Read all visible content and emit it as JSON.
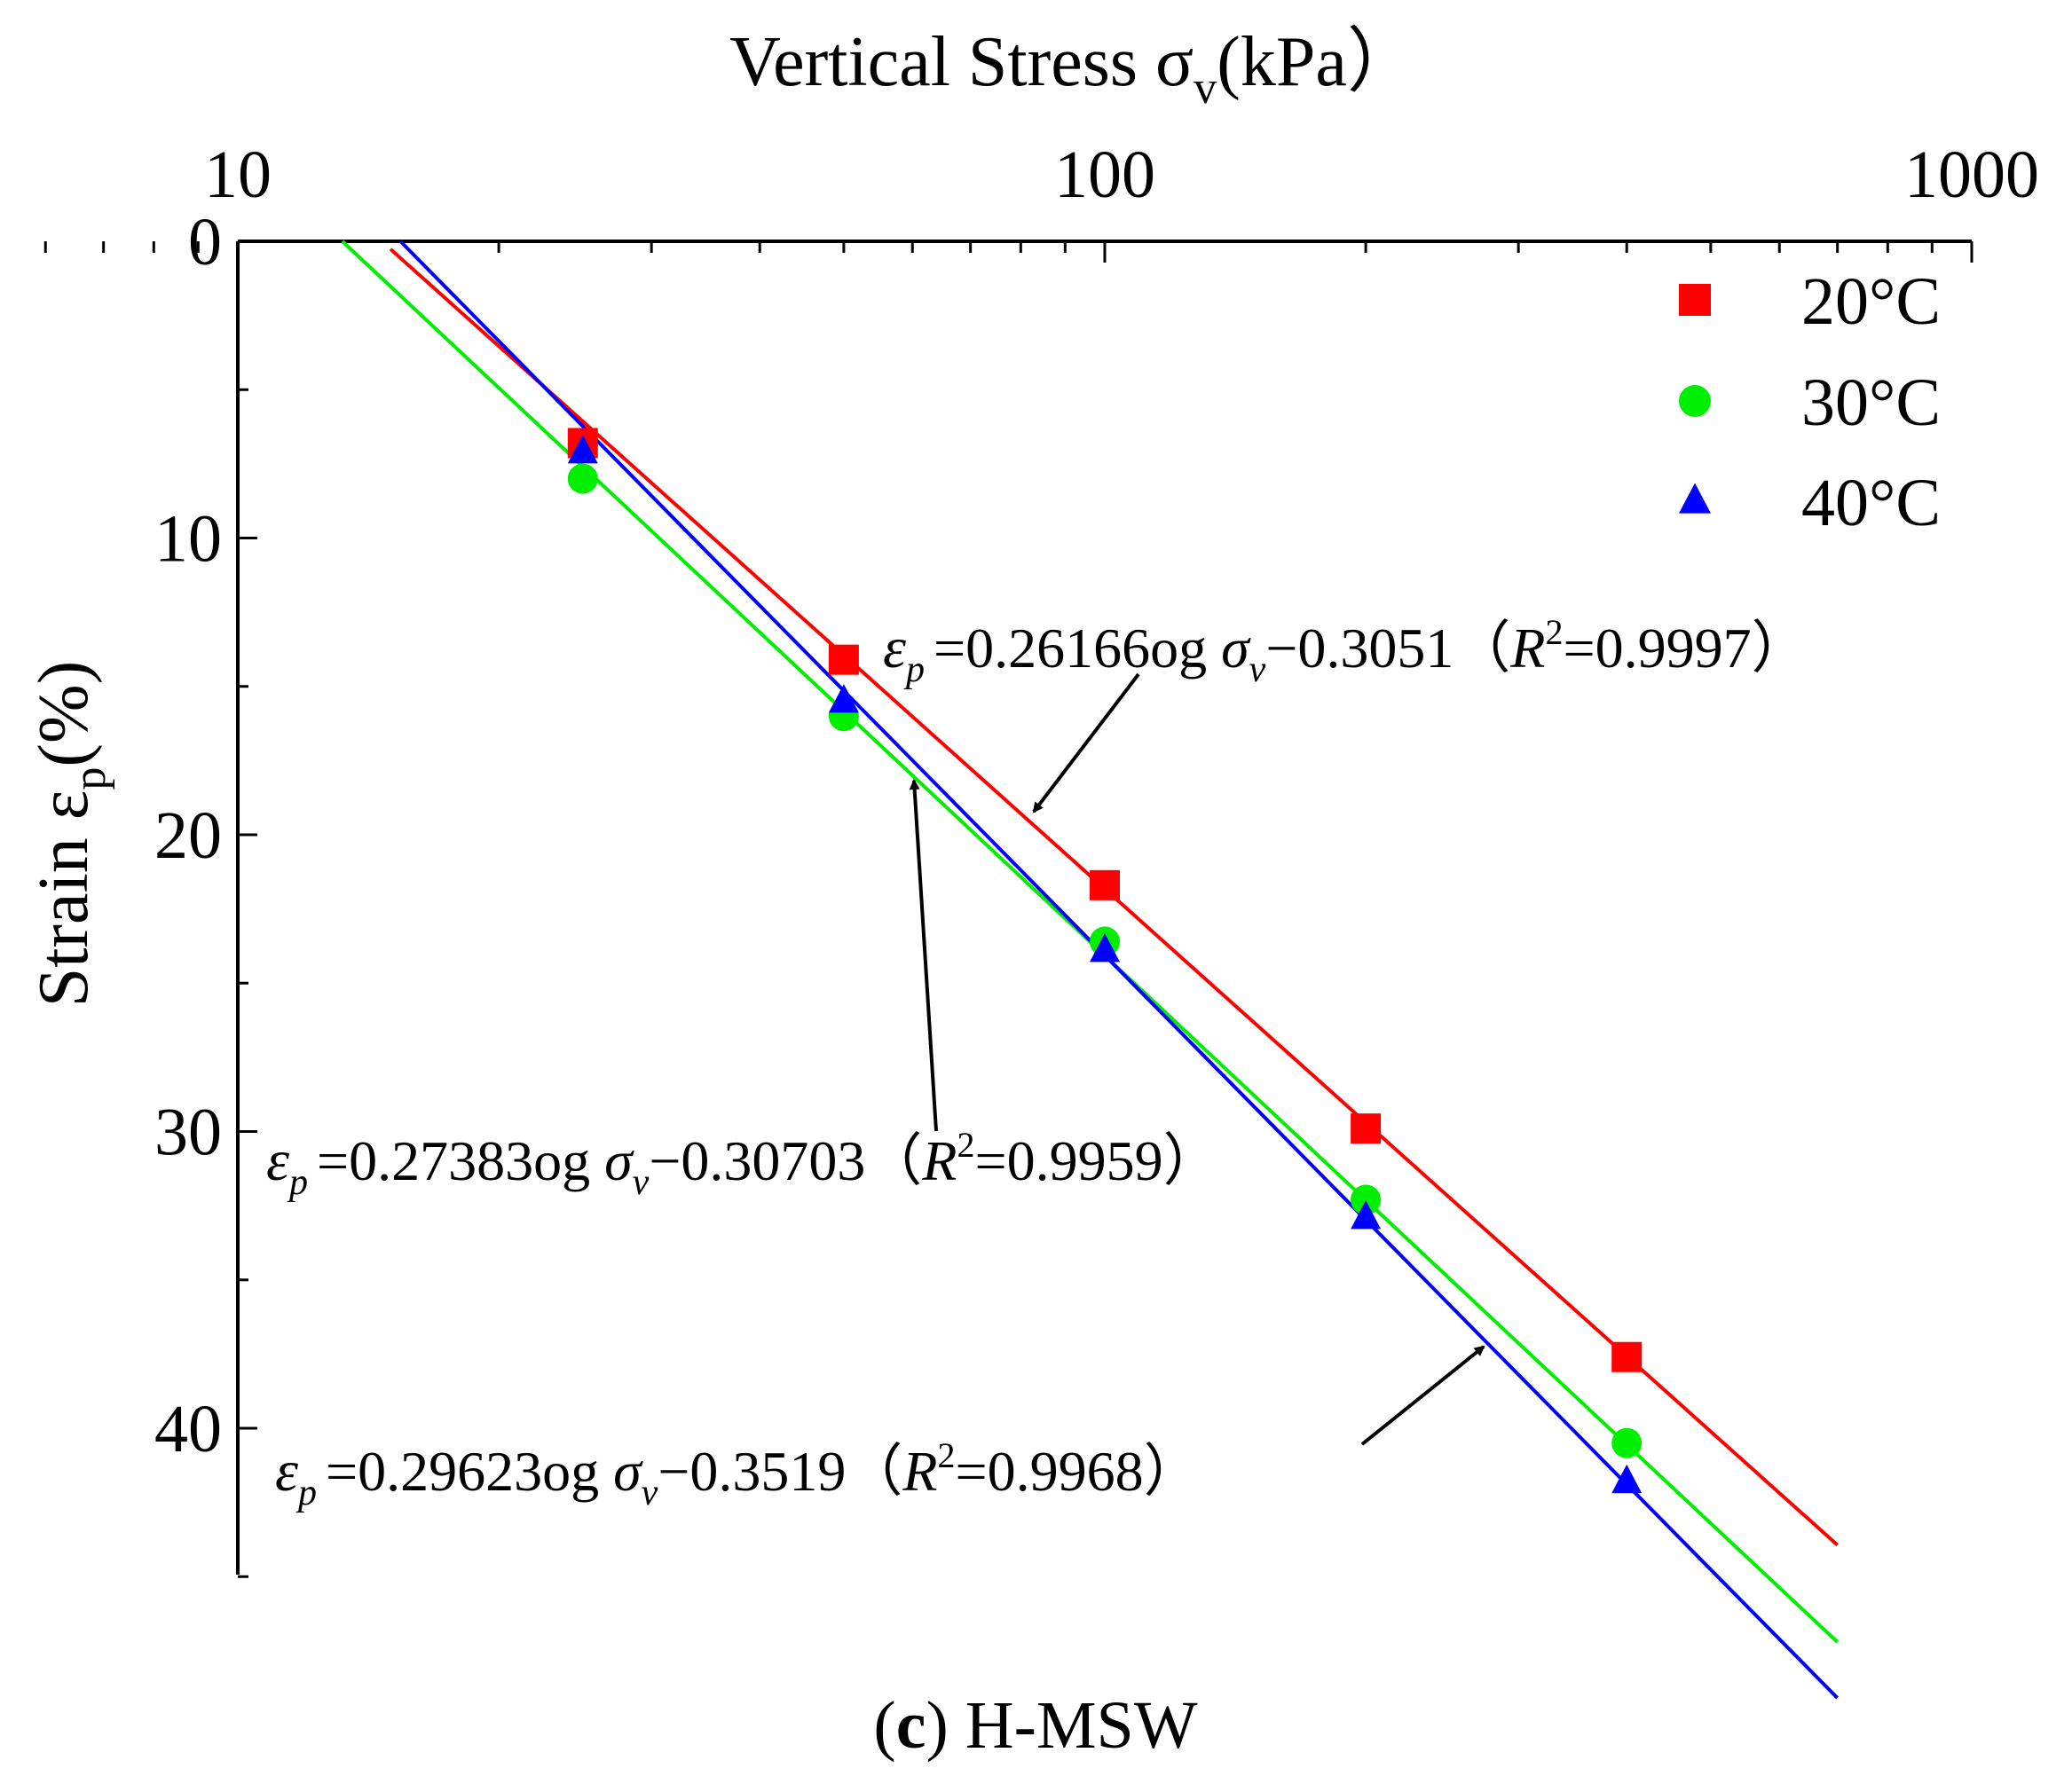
{
  "chart_data": {
    "type": "scatter",
    "title": "",
    "xlabel": "Vertical Stress σv(kPa）",
    "ylabel": "Strain εp(%)",
    "xscale": "log",
    "xlim": [
      10,
      1000
    ],
    "ylim": [
      0,
      45
    ],
    "y_inverted": true,
    "x_axis_position": "top",
    "x_ticks": [
      "10",
      "100",
      "1000"
    ],
    "y_ticks": [
      "0",
      "10",
      "20",
      "30",
      "40"
    ],
    "legend_position": "top-right",
    "series": [
      {
        "name": "20°C",
        "marker": "square",
        "color": "#ff0000",
        "x": [
          25,
          50,
          100,
          200,
          400
        ],
        "y": [
          6.8,
          14.1,
          21.7,
          29.9,
          37.6
        ],
        "fit": {
          "slope": 0.26166,
          "intercept": -0.3051,
          "x_range": [
            15.0,
            700
          ]
        },
        "equation": {
          "prefix": "=0.26166",
          "middle": "og",
          "suffix": "−0.3051（",
          "r2": "=0.9997）"
        }
      },
      {
        "name": "30°C",
        "marker": "circle",
        "color": "#00ee00",
        "x": [
          25,
          50,
          100,
          200,
          400
        ],
        "y": [
          8.0,
          16.0,
          23.6,
          32.3,
          40.5
        ],
        "fit": {
          "slope": 0.27383,
          "intercept": -0.30703,
          "x_range": [
            13.2,
            700
          ]
        },
        "equation": {
          "prefix": "=0.27383",
          "middle": "og",
          "suffix": "−0.30703（",
          "r2": "=0.9959）"
        }
      },
      {
        "name": "40°C",
        "marker": "triangle",
        "color": "#0000ff",
        "x": [
          25,
          50,
          100,
          200,
          400
        ],
        "y": [
          7.1,
          15.5,
          23.9,
          32.9,
          41.8
        ],
        "fit": {
          "slope": 0.29623,
          "intercept": -0.3519,
          "x_range": [
            15.4,
            700
          ]
        },
        "equation": {
          "prefix": "=0.29623",
          "middle": "og",
          "suffix": "−0.3519（",
          "r2": "=0.9968）"
        }
      }
    ],
    "caption_letter": "c",
    "caption_text": "H-MSW"
  }
}
